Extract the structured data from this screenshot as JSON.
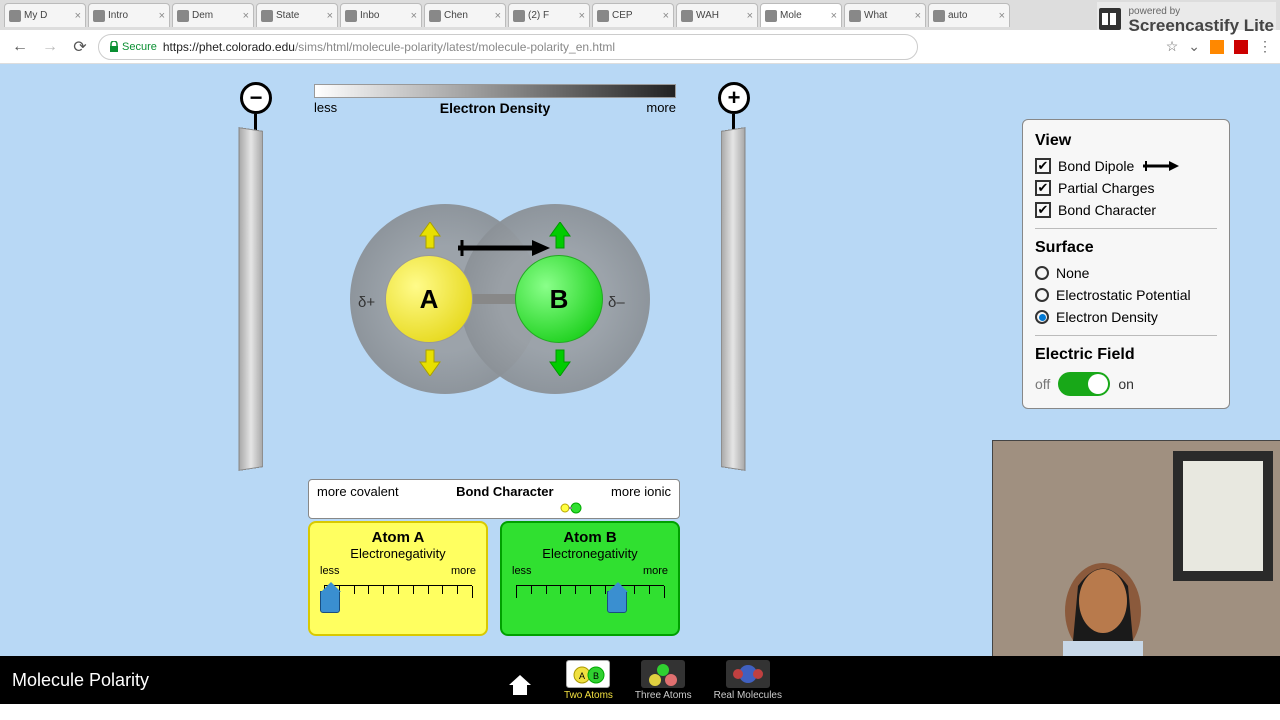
{
  "browser": {
    "tabs": [
      {
        "label": "My D",
        "active": false
      },
      {
        "label": "Intro",
        "active": false
      },
      {
        "label": "Dem",
        "active": false
      },
      {
        "label": "State",
        "active": false
      },
      {
        "label": "Inbo",
        "active": false
      },
      {
        "label": "Chen",
        "active": false
      },
      {
        "label": "(2) F",
        "active": false
      },
      {
        "label": "CEP",
        "active": false
      },
      {
        "label": "WAH",
        "active": false
      },
      {
        "label": "Mole",
        "active": true
      },
      {
        "label": "What",
        "active": false
      },
      {
        "label": "auto",
        "active": false
      }
    ],
    "secure_label": "Secure",
    "url_host": "https://phet.colorado.edu",
    "url_path": "/sims/html/molecule-polarity/latest/molecule-polarity_en.html"
  },
  "density_bar": {
    "title": "Electron Density",
    "left": "less",
    "right": "more"
  },
  "molecule": {
    "atomA_label": "A",
    "atomB_label": "B",
    "delta_plus": "δ+",
    "delta_minus": "δ–"
  },
  "panel": {
    "view_title": "View",
    "bond_dipole": "Bond Dipole",
    "partial_charges": "Partial Charges",
    "bond_character": "Bond Character",
    "surface_title": "Surface",
    "surface_none": "None",
    "surface_ep": "Electrostatic Potential",
    "surface_ed": "Electron Density",
    "ef_title": "Electric Field",
    "ef_off": "off",
    "ef_on": "on"
  },
  "bond_char": {
    "left": "more covalent",
    "title": "Bond Character",
    "right": "more ionic"
  },
  "en": {
    "A_title": "Atom A",
    "B_title": "Atom B",
    "subtitle": "Electronegativity",
    "less": "less",
    "more": "more",
    "A_value_pct": 4,
    "B_value_pct": 68
  },
  "bottom": {
    "title": "Molecule Polarity",
    "two": "Two Atoms",
    "three": "Three Atoms",
    "real": "Real Molecules"
  },
  "watermark": {
    "small": "powered by",
    "big": "Screencastify Lite"
  }
}
